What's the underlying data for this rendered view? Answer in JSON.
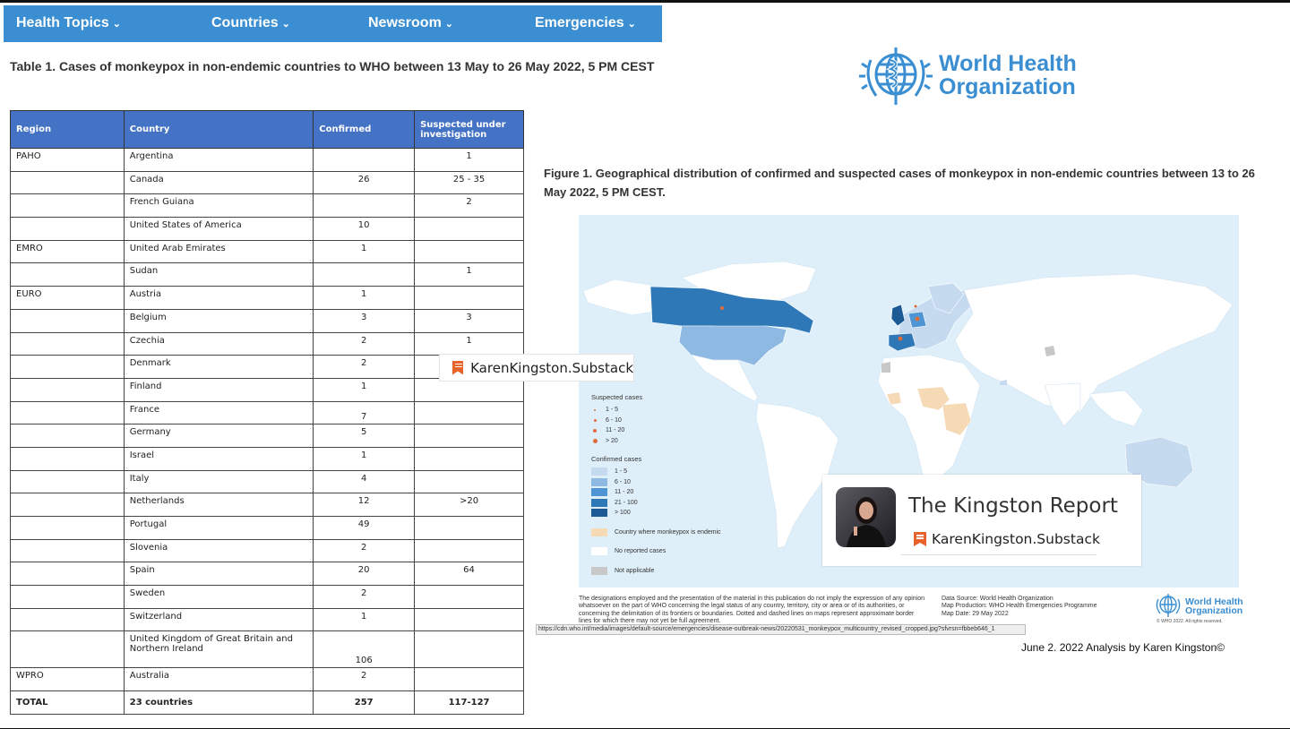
{
  "nav": {
    "items": [
      {
        "label": "Health Topics"
      },
      {
        "label": "Countries"
      },
      {
        "label": "Newsroom"
      },
      {
        "label": "Emergencies"
      }
    ]
  },
  "table_title": "Table 1. Cases of monkeypox in non-endemic countries to WHO between 13 May to 26 May 2022,   5 PM CEST",
  "table": {
    "headers": [
      "Region",
      "Country",
      "Confirmed",
      "Suspected under investigation"
    ],
    "rows": [
      {
        "region": "PAHO",
        "country": "Argentina",
        "confirmed": "",
        "suspected": "1"
      },
      {
        "region": "",
        "country": "Canada",
        "confirmed": "26",
        "suspected": "25 - 35"
      },
      {
        "region": "",
        "country": "French Guiana",
        "confirmed": "",
        "suspected": "2"
      },
      {
        "region": "",
        "country": "United States of America",
        "confirmed": "10",
        "suspected": ""
      },
      {
        "region": "EMRO",
        "country": "United Arab Emirates",
        "confirmed": "1",
        "suspected": ""
      },
      {
        "region": "",
        "country": "Sudan",
        "confirmed": "",
        "suspected": "1"
      },
      {
        "region": "EURO",
        "country": "Austria",
        "confirmed": "1",
        "suspected": ""
      },
      {
        "region": "",
        "country": "Belgium",
        "confirmed": "3",
        "suspected": "3"
      },
      {
        "region": "",
        "country": "Czechia",
        "confirmed": "2",
        "suspected": "1"
      },
      {
        "region": "",
        "country": "Denmark",
        "confirmed": "2",
        "suspected": ""
      },
      {
        "region": "",
        "country": "Finland",
        "confirmed": "1",
        "suspected": ""
      },
      {
        "region": "",
        "country": "France",
        "confirmed": "7",
        "suspected": ""
      },
      {
        "region": "",
        "country": "Germany",
        "confirmed": "5",
        "suspected": ""
      },
      {
        "region": "",
        "country": "Israel",
        "confirmed": "1",
        "suspected": ""
      },
      {
        "region": "",
        "country": "Italy",
        "confirmed": "4",
        "suspected": ""
      },
      {
        "region": "",
        "country": "Netherlands",
        "confirmed": "12",
        "suspected": ">20"
      },
      {
        "region": "",
        "country": "Portugal",
        "confirmed": "49",
        "suspected": ""
      },
      {
        "region": "",
        "country": "Slovenia",
        "confirmed": "2",
        "suspected": ""
      },
      {
        "region": "",
        "country": "Spain",
        "confirmed": "20",
        "suspected": "64"
      },
      {
        "region": "",
        "country": "Sweden",
        "confirmed": "2",
        "suspected": ""
      },
      {
        "region": "",
        "country": "Switzerland",
        "confirmed": "1",
        "suspected": ""
      },
      {
        "region": "",
        "country": "United Kingdom of Great Britain and Northern Ireland",
        "confirmed": "106",
        "suspected": ""
      },
      {
        "region": "WPRO",
        "country": "Australia",
        "confirmed": "2",
        "suspected": ""
      }
    ],
    "total": {
      "region": "TOTAL",
      "country": "23 countries",
      "confirmed": "257",
      "suspected": "117-127"
    }
  },
  "who_logo": {
    "line1": "World Health",
    "line2": "Organization"
  },
  "figure_title": "Figure 1. Geographical distribution of confirmed and suspected cases of monkeypox in non-endemic countries between 13 to 26 May 2022, 5 PM CEST.",
  "map": {
    "legend": {
      "suspected_title": "Suspected cases",
      "suspected": [
        "1 - 5",
        "6 - 10",
        "11 - 20",
        "> 20"
      ],
      "confirmed_title": "Confirmed cases",
      "confirmed": [
        {
          "label": "1 - 5",
          "color": "#c5d9ef"
        },
        {
          "label": "6 - 10",
          "color": "#8db9e3"
        },
        {
          "label": "11 - 20",
          "color": "#4f95d4"
        },
        {
          "label": "21 - 100",
          "color": "#2e78b8"
        },
        {
          "label": "> 100",
          "color": "#1b5a95"
        }
      ],
      "endemic": {
        "label": "Country where monkeypox is endemic",
        "color": "#f6d9b5"
      },
      "none": {
        "label": "No reported cases",
        "color": "#ffffff"
      },
      "na": {
        "label": "Not applicable",
        "color": "#c8c8c8"
      }
    }
  },
  "substack_tag": "KarenKingston.Substack",
  "kingston_card": {
    "title": "The Kingston Report",
    "subtitle": "KarenKingston.Substack"
  },
  "disclaimer": "The designations employed and the presentation of the material in this publication do not imply the expression of any opinion whatsoever on the part of WHO concerning the legal status of any country, territory, city or area or of its authorities, or concerning the delimitation of its frontiers or boundaries. Dotted and dashed lines on maps represent approximate border lines for which there may not yet be full agreement.",
  "map_source": {
    "source": "Data Source: World Health Organization",
    "production": "Map Production: WHO Health Emergencies Programme",
    "date": "Map Date: 29 May 2022"
  },
  "who_small": {
    "line1": "World Health",
    "line2": "Organization",
    "copyright": "© WHO 2022. All rights reserved."
  },
  "url": "https://cdn.who.int/media/images/default-source/emergencies/disease-outbreak-news/20220531_monkeypox_multicountry_revised_cropped.jpg?sfvrsn=fbbeb646_1",
  "credit": "June 2. 2022 Analysis by Karen Kingston©",
  "colors": {
    "nav": "#3a8ed1",
    "table_header": "#4472c4",
    "who_blue": "#3a8ed1",
    "substack_orange": "#e8622c"
  }
}
